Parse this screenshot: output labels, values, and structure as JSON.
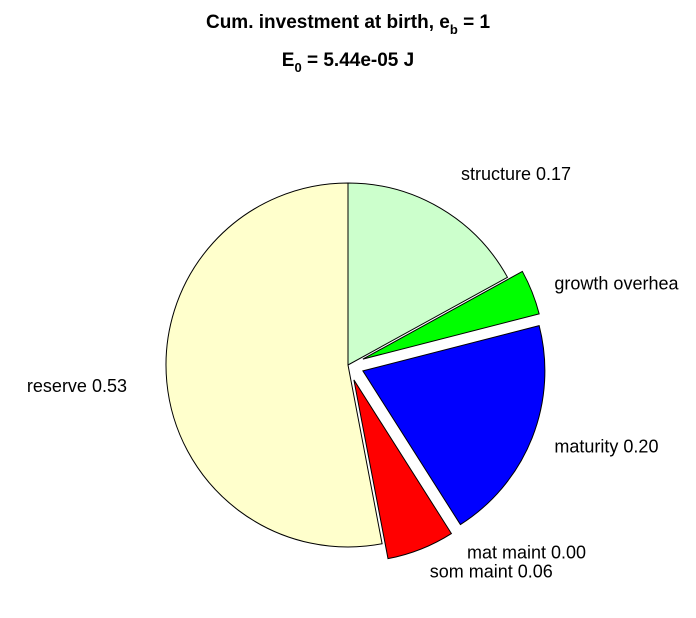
{
  "chart_data": {
    "type": "pie",
    "title_main": "Cum. investment at birth, e",
    "title_sub": "b",
    "title_tail": " = 1",
    "subtitle_main": "E",
    "subtitle_sub": "0",
    "subtitle_tail": " = 5.44e-05 J",
    "slices": [
      {
        "name": "structure",
        "value": 0.17,
        "label": "structure 0.17",
        "color": "#ccffcc",
        "exploded": false
      },
      {
        "name": "growth overhead",
        "value": 0.04,
        "label": "growth overhea",
        "color": "#00ff00",
        "exploded": true
      },
      {
        "name": "maturity",
        "value": 0.2,
        "label": "maturity 0.20",
        "color": "#0000ff",
        "exploded": true
      },
      {
        "name": "mat maint",
        "value": 0.0,
        "label": "mat maint 0.00",
        "color": "#ff00ff",
        "exploded": true
      },
      {
        "name": "som maint",
        "value": 0.06,
        "label": "som maint 0.06",
        "color": "#ff0000",
        "exploded": true
      },
      {
        "name": "reserve",
        "value": 0.53,
        "label": "reserve 0.53",
        "color": "#ffffcc",
        "exploded": false
      }
    ]
  }
}
